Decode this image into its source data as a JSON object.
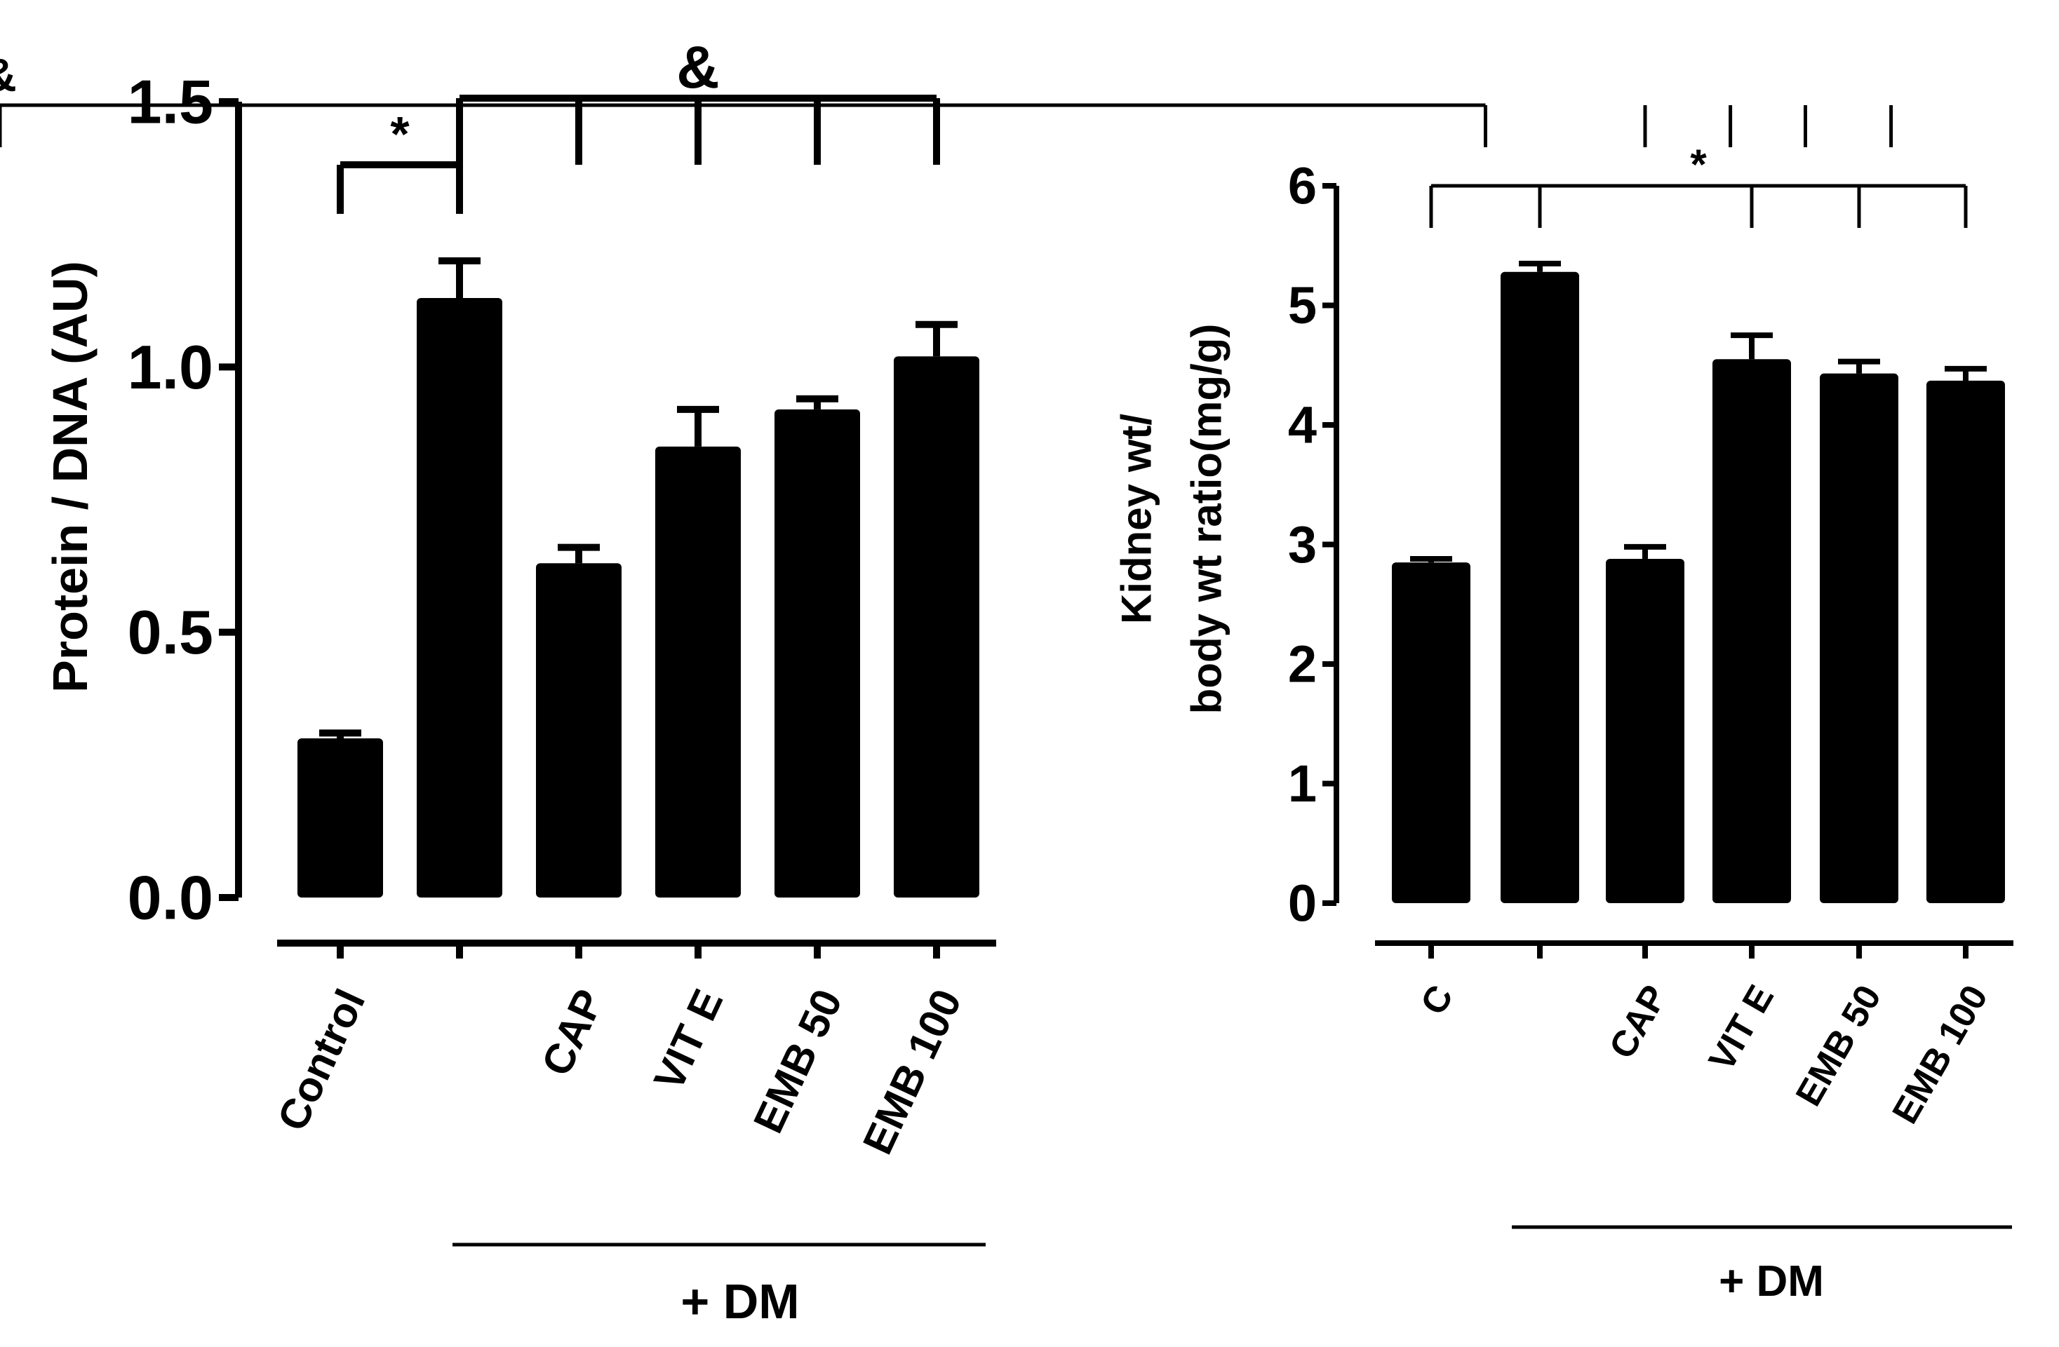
{
  "chart_data": [
    {
      "type": "bar",
      "ylabel": "Protein / DNA (AU)",
      "ylim": [
        0,
        1.5
      ],
      "yticks": [
        0,
        0.5,
        1.0,
        1.5
      ],
      "ytick_labels": [
        "0.0",
        "0.5",
        "1.0",
        "1.5"
      ],
      "categories": [
        "Control",
        "",
        "CAP",
        "VIT E",
        "EMB 50",
        "EMB 100"
      ],
      "values": [
        0.3,
        1.13,
        0.63,
        0.85,
        0.92,
        1.02
      ],
      "errors": [
        0.01,
        0.07,
        0.03,
        0.07,
        0.02,
        0.06
      ],
      "group_label": "+ DM",
      "annotations": [
        {
          "symbol": "*",
          "from": 0,
          "to": 1,
          "ticks": [
            0,
            1
          ]
        },
        {
          "symbol": "&",
          "from": 1,
          "to": 5,
          "ticks": [
            1,
            2,
            3,
            4,
            5
          ]
        }
      ]
    },
    {
      "type": "bar",
      "ylabel_lines": [
        "Kidney wt/",
        "body wt ratio(mg/g)"
      ],
      "ylim": [
        0,
        6
      ],
      "yticks": [
        0,
        1,
        2,
        3,
        4,
        5,
        6
      ],
      "ytick_labels": [
        "0",
        "1",
        "2",
        "3",
        "4",
        "5",
        "6"
      ],
      "categories": [
        "C",
        "",
        "CAP",
        "VIT E",
        "EMB 50",
        "EMB 100"
      ],
      "values": [
        2.85,
        5.28,
        2.88,
        4.55,
        4.43,
        4.37
      ],
      "errors": [
        0.03,
        0.07,
        0.1,
        0.2,
        0.1,
        0.1
      ],
      "group_label": "+ DM",
      "annotations": [
        {
          "symbol": "&",
          "from": 0.5,
          "to": 5.5,
          "ticks": [
            0.5,
            2,
            2.8,
            3.5,
            4.3,
            5.5
          ]
        },
        {
          "symbol": "*",
          "from": 0,
          "to": 5,
          "ticks": [
            0,
            1,
            3,
            4,
            5
          ]
        }
      ]
    }
  ]
}
